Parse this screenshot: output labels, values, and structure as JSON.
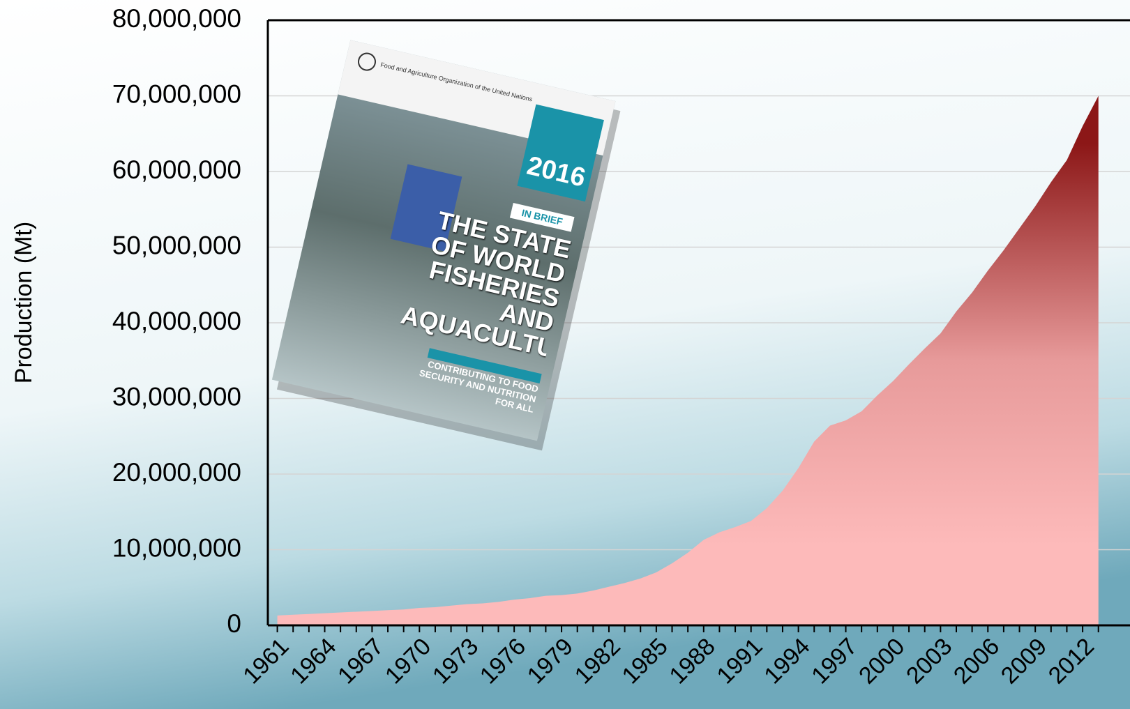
{
  "chart_data": {
    "type": "area",
    "ylabel": "Production (Mt)",
    "x": [
      1961,
      1962,
      1963,
      1964,
      1965,
      1966,
      1967,
      1968,
      1969,
      1970,
      1971,
      1972,
      1973,
      1974,
      1975,
      1976,
      1977,
      1978,
      1979,
      1980,
      1981,
      1982,
      1983,
      1984,
      1985,
      1986,
      1987,
      1988,
      1989,
      1990,
      1991,
      1992,
      1993,
      1994,
      1995,
      1996,
      1997,
      1998,
      1999,
      2000,
      2001,
      2002,
      2003,
      2004,
      2005,
      2006,
      2007,
      2008,
      2009,
      2010,
      2011,
      2012,
      2013
    ],
    "values": [
      1300000,
      1400000,
      1500000,
      1600000,
      1700000,
      1800000,
      1900000,
      2000000,
      2100000,
      2300000,
      2400000,
      2600000,
      2800000,
      2900000,
      3100000,
      3400000,
      3600000,
      3900000,
      4000000,
      4200000,
      4600000,
      5100000,
      5600000,
      6200000,
      7000000,
      8200000,
      9600000,
      11300000,
      12300000,
      13000000,
      13800000,
      15500000,
      17800000,
      20800000,
      24300000,
      26400000,
      27100000,
      28300000,
      30400000,
      32300000,
      34500000,
      36600000,
      38600000,
      41500000,
      44000000,
      46900000,
      49600000,
      52500000,
      55400000,
      58600000,
      61500000,
      66000000,
      70000000
    ],
    "colors": [
      "#8c1717",
      "#e79a9a",
      "#fdbaba"
    ],
    "xlim": [
      1960.4,
      2015
    ],
    "xticks": [
      1961,
      1964,
      1967,
      1970,
      1973,
      1976,
      1979,
      1982,
      1985,
      1988,
      1991,
      1994,
      1997,
      2000,
      2003,
      2006,
      2009,
      2012
    ],
    "ylim": [
      0,
      80000000
    ],
    "yticks": [
      0,
      {
        "value": 10000000,
        "label": "10,000,000"
      },
      {
        "value": 20000000,
        "label": "20,000,000"
      },
      {
        "value": 30000000,
        "label": "30,000,000"
      },
      {
        "value": 40000000,
        "label": "40,000,000"
      },
      {
        "value": 50000000,
        "label": "50,000,000"
      },
      {
        "value": 60000000,
        "label": "60,000,000"
      },
      {
        "value": 70000000,
        "label": "70,000,000"
      },
      {
        "value": 80000000,
        "label": "80,000,000"
      }
    ],
    "grid": true,
    "annotations": [
      "Food and Agriculture Organization of the United Nations",
      "2016",
      "IN BRIEF",
      "THE STATE OF WORLD FISHERIES AND AQUACULTURE",
      "CONTRIBUTING TO FOOD SECURITY AND NUTRITION FOR ALL"
    ]
  }
}
